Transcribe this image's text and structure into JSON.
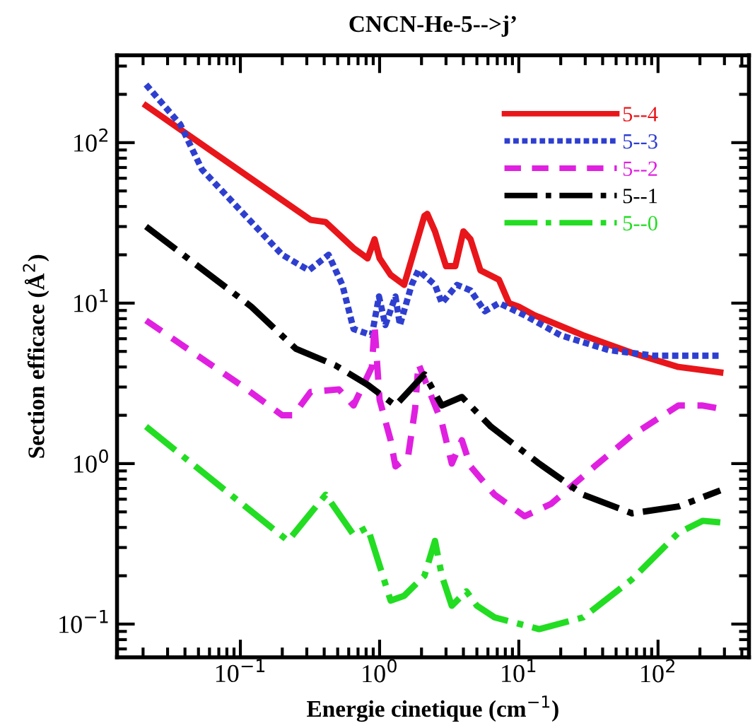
{
  "chart_data": {
    "type": "line",
    "title": "CNCN-He-5-->j’",
    "xlabel": "Energie cinetique (cm$^{−1}$)",
    "ylabel": "Section efficace (Å$^{2}$)",
    "log": "xy",
    "xlim": [
      0.013,
      450
    ],
    "ylim": [
      0.062,
      350
    ],
    "xticks": [
      {
        "value": 0.1,
        "label": "10$^{−1}$"
      },
      {
        "value": 1,
        "label": "10$^{0}$"
      },
      {
        "value": 10,
        "label": "10$^{1}$"
      },
      {
        "value": 100,
        "label": "10$^{2}$"
      }
    ],
    "yticks": [
      {
        "value": 0.1,
        "label": "10$^{−1}$"
      },
      {
        "value": 1,
        "label": "10$^{0}$"
      },
      {
        "value": 10,
        "label": "10$^{1}$"
      },
      {
        "value": 100,
        "label": "10$^{2}$"
      }
    ],
    "legend": "top right",
    "grid": false,
    "marker": "none",
    "series": [
      {
        "name": "5--4",
        "color": "#e8161a",
        "line_style": "solid",
        "x": [
          0.021,
          0.32,
          0.41,
          0.65,
          0.82,
          0.92,
          1.0,
          1.2,
          1.5,
          2.1,
          2.2,
          2.5,
          3.0,
          3.5,
          4.0,
          4.5,
          5.3,
          7.2,
          8.5,
          10.0,
          13.0,
          29.0,
          65.0,
          140.0,
          280.0
        ],
        "values": [
          170.0,
          33.0,
          32.0,
          22.0,
          19.0,
          25.0,
          19.0,
          15.0,
          13.0,
          35.0,
          36.0,
          28.0,
          17.0,
          17.0,
          28.0,
          25.0,
          16.0,
          14.0,
          10.0,
          9.5,
          8.4,
          6.3,
          4.9,
          4.0,
          3.7
        ]
      },
      {
        "name": "5--3",
        "color": "#2e3fd0",
        "line_style": "dotted",
        "x": [
          0.021,
          0.037,
          0.053,
          0.12,
          0.2,
          0.31,
          0.43,
          0.54,
          0.65,
          0.88,
          0.99,
          1.1,
          1.3,
          1.4,
          1.7,
          1.9,
          2.5,
          2.8,
          3.6,
          4.5,
          5.7,
          7.2,
          11.0,
          20.0,
          44.0,
          94.0,
          280.0
        ],
        "values": [
          230.0,
          130.0,
          68.0,
          32.0,
          20.0,
          16.0,
          20.0,
          13.0,
          6.9,
          6.3,
          11.0,
          7.3,
          11.0,
          7.3,
          13.0,
          16.0,
          13.0,
          10.0,
          13.0,
          12.0,
          8.9,
          10.0,
          8.4,
          6.3,
          5.1,
          4.7,
          4.7
        ]
      },
      {
        "name": "5--2",
        "color": "#e020e0",
        "line_style": "dashed",
        "x": [
          0.021,
          0.046,
          0.1,
          0.2,
          0.24,
          0.32,
          0.51,
          0.65,
          0.88,
          0.92,
          1.0,
          1.2,
          1.3,
          1.6,
          1.8,
          1.9,
          2.8,
          3.3,
          3.9,
          4.5,
          6.7,
          11.0,
          17.0,
          35.0,
          65.0,
          140.0,
          210.0,
          280.0
        ],
        "values": [
          7.8,
          4.9,
          3.1,
          2.0,
          2.0,
          2.8,
          2.9,
          2.3,
          4.0,
          7.3,
          2.5,
          1.4,
          0.96,
          1.1,
          2.2,
          4.2,
          1.8,
          1.0,
          1.4,
          0.96,
          0.64,
          0.47,
          0.56,
          0.96,
          1.5,
          2.3,
          2.3,
          2.2
        ]
      },
      {
        "name": "5--1",
        "color": "#000000",
        "line_style": "dashdot",
        "x": [
          0.021,
          0.12,
          0.25,
          0.48,
          0.82,
          1.3,
          2.1,
          2.8,
          3.9,
          6.3,
          14.0,
          29.0,
          65.0,
          140.0,
          280.0
        ],
        "values": [
          30.0,
          9.5,
          5.2,
          4.1,
          3.1,
          2.3,
          3.6,
          2.3,
          2.6,
          1.7,
          1.0,
          0.64,
          0.49,
          0.54,
          0.68
        ]
      },
      {
        "name": "5--0",
        "color": "#22dd22",
        "line_style": "dashdot",
        "x": [
          0.021,
          0.22,
          0.41,
          0.65,
          0.82,
          1.2,
          1.5,
          2.1,
          2.5,
          2.8,
          3.3,
          4.2,
          5.0,
          6.7,
          14.0,
          29.0,
          65.0,
          140.0,
          210.0,
          280.0
        ],
        "values": [
          1.7,
          0.33,
          0.64,
          0.36,
          0.4,
          0.14,
          0.15,
          0.2,
          0.33,
          0.2,
          0.13,
          0.16,
          0.13,
          0.11,
          0.093,
          0.11,
          0.19,
          0.37,
          0.44,
          0.43
        ]
      }
    ]
  }
}
